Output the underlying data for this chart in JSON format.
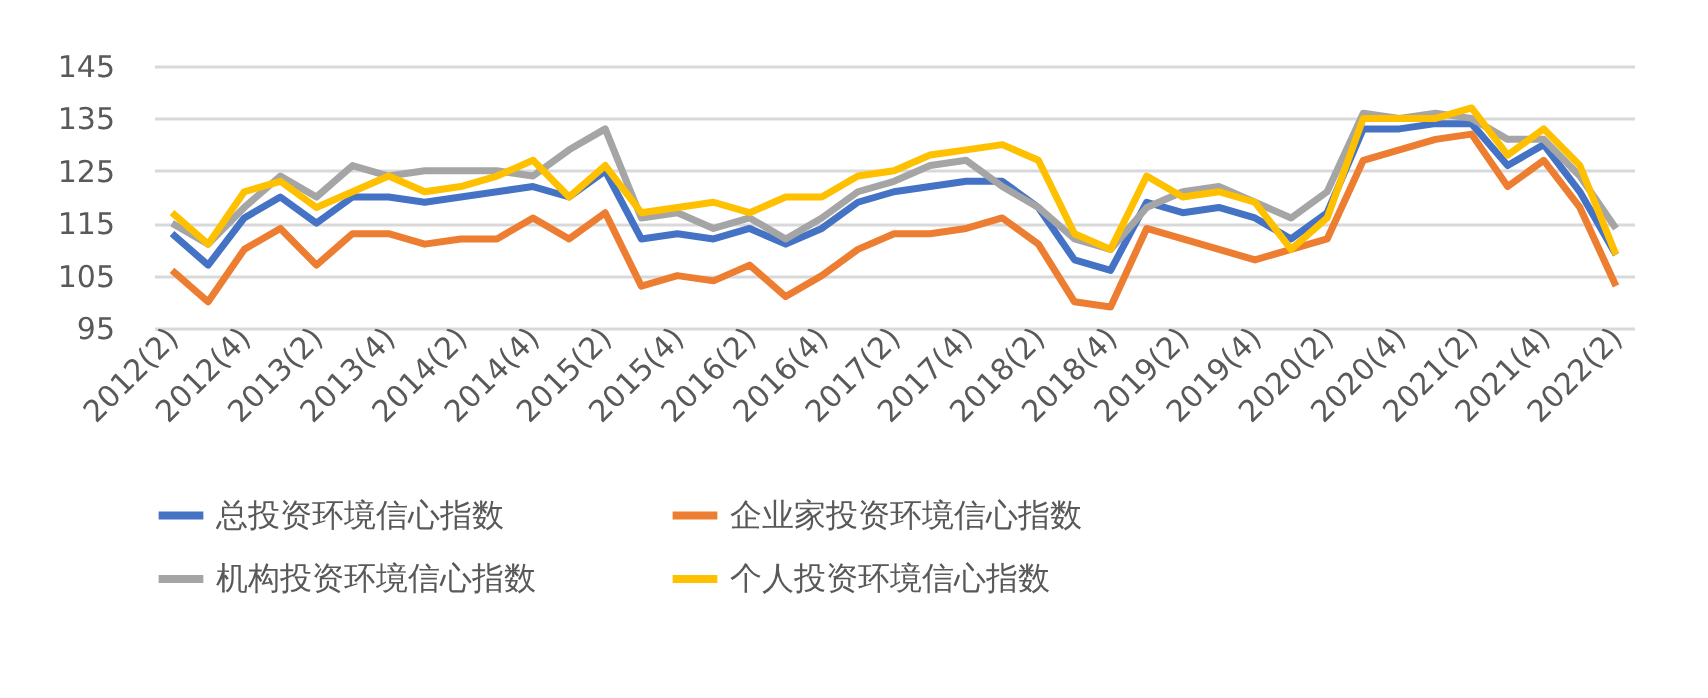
{
  "chart_data": {
    "type": "line",
    "categories": [
      "2012(2)",
      null,
      "2012(4)",
      null,
      "2013(2)",
      null,
      "2013(4)",
      null,
      "2014(2)",
      null,
      "2014(4)",
      null,
      "2015(2)",
      null,
      "2015(4)",
      null,
      "2016(2)",
      null,
      "2016(4)",
      null,
      "2017(2)",
      null,
      "2017(4)",
      null,
      "2018(2)",
      null,
      "2018(4)",
      null,
      "2019(2)",
      null,
      "2019(4)",
      null,
      "2020(2)",
      null,
      "2020(4)",
      null,
      "2021(2)",
      null,
      "2021(4)",
      null,
      "2022(2)"
    ],
    "series": [
      {
        "name": "总投资环境信心指数",
        "color": "#4472c4",
        "values": [
          113,
          107,
          116,
          120,
          115,
          120,
          120,
          119,
          120,
          121,
          122,
          120,
          125,
          112,
          113,
          112,
          114,
          111,
          114,
          119,
          121,
          122,
          123,
          123,
          118,
          108,
          106,
          119,
          117,
          118,
          116,
          112,
          117,
          133,
          133,
          134,
          134,
          126,
          130,
          121,
          109
        ]
      },
      {
        "name": "企业家投资环境信心指数",
        "color": "#ed7d31",
        "values": [
          106,
          100,
          110,
          114,
          107,
          113,
          113,
          111,
          112,
          112,
          116,
          112,
          117,
          103,
          105,
          104,
          107,
          101,
          105,
          110,
          113,
          113,
          114,
          116,
          111,
          100,
          99,
          114,
          112,
          110,
          108,
          110,
          112,
          127,
          129,
          131,
          132,
          122,
          127,
          118,
          103
        ]
      },
      {
        "name": "机构投资环境信心指数",
        "color": "#a5a5a5",
        "values": [
          115,
          111,
          118,
          124,
          120,
          126,
          124,
          125,
          125,
          125,
          124,
          129,
          133,
          116,
          117,
          114,
          116,
          112,
          116,
          121,
          123,
          126,
          127,
          122,
          118,
          112,
          110,
          118,
          121,
          122,
          119,
          116,
          121,
          136,
          135,
          136,
          135,
          131,
          131,
          124,
          114
        ]
      },
      {
        "name": "个人投资环境信心指数",
        "color": "#ffc000",
        "values": [
          117,
          111,
          121,
          123,
          118,
          121,
          124,
          121,
          122,
          124,
          127,
          120,
          126,
          117,
          118,
          119,
          117,
          120,
          120,
          124,
          125,
          128,
          129,
          130,
          127,
          113,
          110,
          124,
          120,
          121,
          119,
          110,
          116,
          135,
          135,
          135,
          137,
          128,
          133,
          126,
          109
        ]
      }
    ],
    "ylim": [
      95,
      145
    ],
    "yticks": [
      95,
      105,
      115,
      125,
      135,
      145
    ],
    "grid": "y",
    "legend": "bottom"
  }
}
